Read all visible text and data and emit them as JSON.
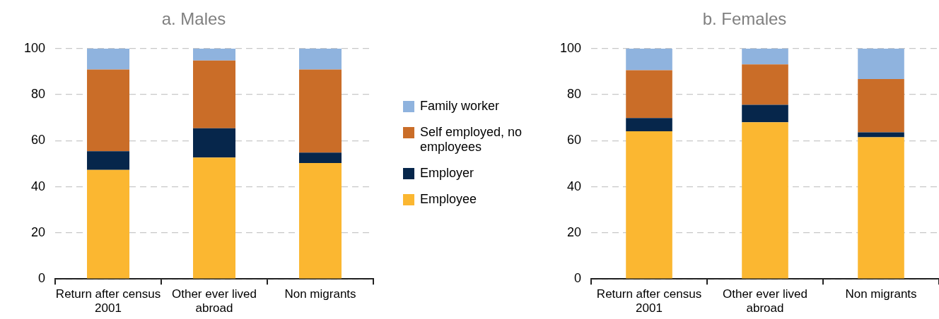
{
  "chart_data": [
    {
      "type": "bar",
      "title": "a. Males",
      "categories": [
        "Return after census 2001",
        "Other ever lived abroad",
        "Non migrants"
      ],
      "stacked": true,
      "ylim": [
        0,
        100
      ],
      "yticks": [
        0,
        20,
        40,
        60,
        80,
        100
      ],
      "grid": "y",
      "legend": "right",
      "series": [
        {
          "name": "Employee",
          "color": "#fbb731",
          "values": [
            47.3,
            52.7,
            50.3
          ]
        },
        {
          "name": "Employer",
          "color": "#06264b",
          "values": [
            8.1,
            12.7,
            4.5
          ]
        },
        {
          "name": "Self employed, no employees",
          "color": "#ca6d28",
          "values": [
            35.5,
            29.4,
            36.1
          ]
        },
        {
          "name": "Family worker",
          "color": "#8fb3de",
          "values": [
            9.1,
            5.2,
            9.1
          ]
        }
      ]
    },
    {
      "type": "bar",
      "title": "b. Females",
      "categories": [
        "Return after census 2001",
        "Other ever lived abroad",
        "Non migrants"
      ],
      "stacked": true,
      "ylim": [
        0,
        100
      ],
      "yticks": [
        0,
        20,
        40,
        60,
        80,
        100
      ],
      "grid": "y",
      "series": [
        {
          "color": "#fbb731",
          "values": [
            64.1,
            68.0,
            61.5
          ]
        },
        {
          "color": "#06264b",
          "values": [
            5.7,
            7.6,
            2.1
          ]
        },
        {
          "color": "#ca6d28",
          "values": [
            20.8,
            17.5,
            23.2
          ]
        },
        {
          "color": "#8fb3de",
          "values": [
            9.4,
            6.9,
            13.2
          ]
        }
      ]
    }
  ]
}
